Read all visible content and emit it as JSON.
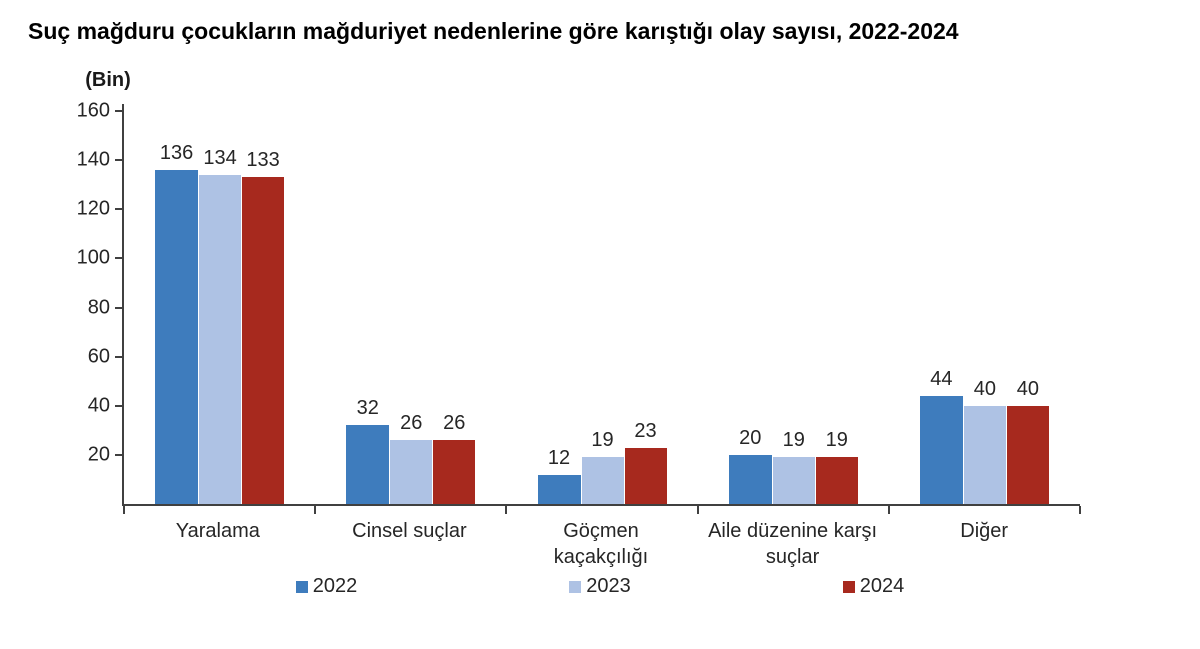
{
  "title": "Suç mağduru çocukların mağduriyet nedenlerine göre karıştığı olay sayısı, 2022-2024",
  "chart_data": {
    "type": "bar",
    "title": "Suç mağduru çocukların mağduriyet nedenlerine göre karıştığı olay sayısı, 2022-2024",
    "unit_label": "(Bin)",
    "categories": [
      "Yaralama",
      "Cinsel suçlar",
      "Göçmen\nkaçakçılığı",
      "Aile düzenine karşı\nsuçlar",
      "Diğer"
    ],
    "series": [
      {
        "name": "2022",
        "color": "#3E7CBD",
        "values": [
          136,
          32,
          12,
          20,
          44
        ]
      },
      {
        "name": "2023",
        "color": "#AEC2E4",
        "values": [
          134,
          26,
          19,
          19,
          40
        ]
      },
      {
        "name": "2024",
        "color": "#A7291E",
        "values": [
          133,
          26,
          23,
          19,
          40
        ]
      }
    ],
    "ylim": [
      0,
      160
    ],
    "yticks": [
      20,
      40,
      60,
      80,
      100,
      120,
      140,
      160
    ],
    "grid": false,
    "data_labels": true,
    "legend_position": "bottom",
    "axis_color": "#404040",
    "text_color": "#262626",
    "background_color": "#ffffff"
  }
}
